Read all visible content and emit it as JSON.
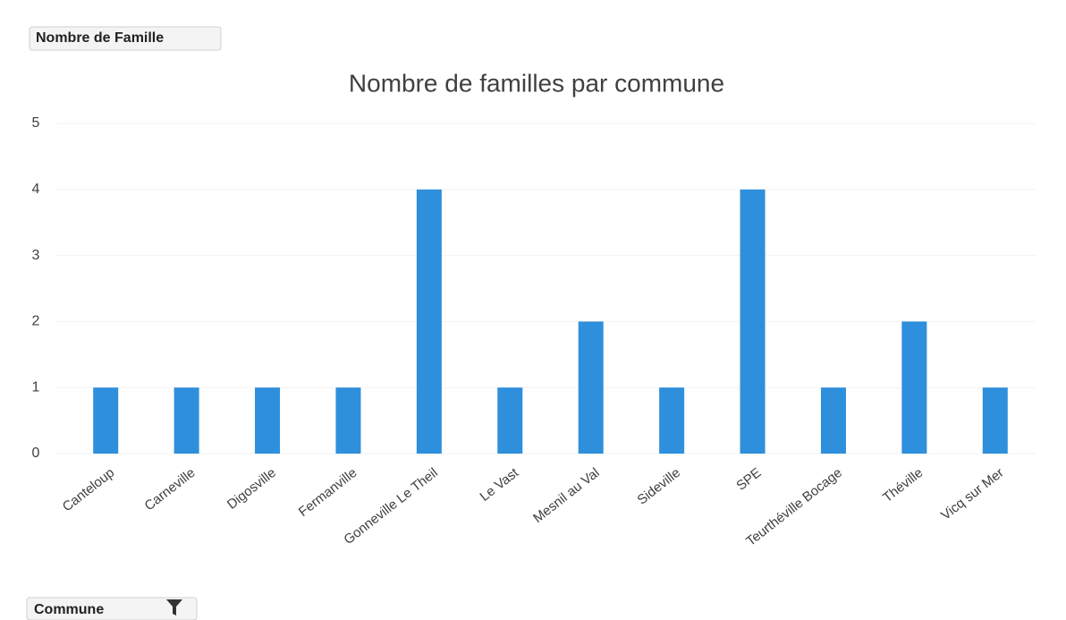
{
  "chart_data": {
    "type": "bar",
    "title": "Nombre de familles par commune",
    "value_field": "Nombre de Famille",
    "axis_field": "Commune",
    "categories": [
      "Canteloup",
      "Carneville",
      "Digosville",
      "Fermanville",
      "Gonneville Le Theil",
      "Le Vast",
      "Mesnil au Val",
      "Sideville",
      "SPE",
      "Teurthéville Bocage",
      "Théville",
      "Vicq sur Mer"
    ],
    "values": [
      1,
      1,
      1,
      1,
      4,
      1,
      2,
      1,
      4,
      1,
      2,
      1
    ],
    "color": "#2e8fdc",
    "ylim": [
      0,
      5
    ],
    "yticks": [
      0,
      1,
      2,
      3,
      4,
      5
    ],
    "grid": true
  }
}
